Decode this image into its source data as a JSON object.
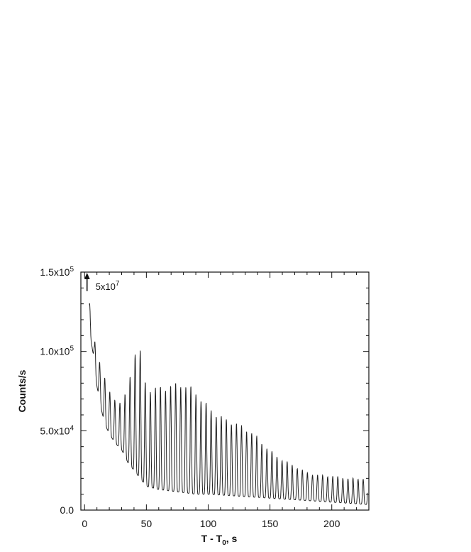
{
  "chart_data": {
    "type": "line",
    "title": "",
    "xlabel": "T - T0, s",
    "xlabel_parts": {
      "main": "T - T",
      "sub": "0",
      "tail": ", s"
    },
    "ylabel": "Counts/s",
    "xlim": [
      -3,
      230
    ],
    "ylim": [
      0,
      150000
    ],
    "x_ticks": [
      0,
      50,
      100,
      150,
      200
    ],
    "x_tick_labels": [
      "0",
      "50",
      "100",
      "150",
      "200"
    ],
    "y_ticks": [
      0,
      50000,
      100000,
      150000
    ],
    "y_tick_labels": [
      {
        "value": 0,
        "text": "0.0",
        "exp": ""
      },
      {
        "value": 50000,
        "text": "5.0x10",
        "exp": "4"
      },
      {
        "value": 100000,
        "text": "1.0x10",
        "exp": "5"
      },
      {
        "value": 150000,
        "text": "1.5x10",
        "exp": "5"
      }
    ],
    "annotation": {
      "text": "5x10",
      "exp": "7",
      "arrow_x": 2,
      "arrow_y_from": 138000,
      "arrow_y_to": 150000
    },
    "grid": false,
    "legend": "none",
    "line_color": "#222222",
    "oscillation_period_s": 4.1,
    "series": [
      {
        "x": [
          0,
          2,
          4,
          5,
          6,
          7,
          8,
          9,
          10,
          12,
          14,
          16,
          20,
          25,
          30,
          35,
          40,
          45,
          50,
          60,
          70,
          80,
          90,
          100,
          110,
          120,
          130,
          140,
          150,
          160,
          170,
          180,
          190,
          200,
          210,
          220,
          229
        ],
        "peak": [
          0,
          0,
          130000,
          128000,
          110000,
          108000,
          103000,
          116000,
          102000,
          95000,
          85000,
          85000,
          75000,
          70000,
          68000,
          75000,
          98000,
          97000,
          75000,
          78000,
          80000,
          78000,
          72000,
          65000,
          60000,
          55000,
          50000,
          45000,
          38000,
          32000,
          27000,
          23000,
          22000,
          22000,
          20000,
          19000,
          20000
        ],
        "trough": [
          0,
          0,
          118000,
          108000,
          103000,
          98000,
          92000,
          85000,
          78000,
          70000,
          62000,
          55000,
          48000,
          42000,
          38000,
          30000,
          25000,
          20000,
          15000,
          13000,
          12000,
          11000,
          10000,
          10000,
          9500,
          9000,
          8500,
          8000,
          7500,
          7000,
          6500,
          6000,
          5500,
          5000,
          4500,
          4000,
          3500
        ]
      }
    ]
  }
}
